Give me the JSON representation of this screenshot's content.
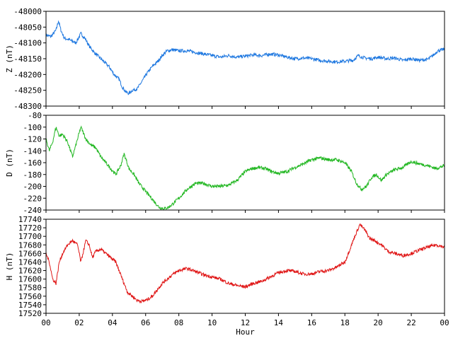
{
  "chart_data": [
    {
      "type": "line",
      "ylabel": "Z (nT)",
      "ylim": [
        -48300,
        -48000
      ],
      "yticks": [
        -48000,
        -48050,
        -48100,
        -48150,
        -48200,
        -48250,
        -48300
      ],
      "xlim": [
        0,
        24
      ],
      "series": [
        {
          "color": "#1f78e0",
          "x": [
            0,
            0.3,
            0.6,
            0.75,
            0.9,
            1.1,
            1.4,
            1.8,
            2.1,
            2.4,
            2.6,
            2.9,
            3.2,
            3.5,
            3.8,
            4.1,
            4.4,
            4.6,
            4.8,
            5.0,
            5.2,
            5.5,
            5.8,
            6.1,
            6.4,
            6.7,
            7.0,
            7.3,
            7.6,
            8.0,
            8.5,
            9.0,
            9.5,
            10.0,
            10.5,
            11.0,
            11.5,
            12.0,
            12.5,
            13.0,
            13.5,
            14.0,
            14.5,
            15.0,
            15.5,
            16.0,
            16.5,
            17.0,
            17.5,
            18.0,
            18.5,
            18.8,
            19.2,
            19.6,
            20.0,
            20.5,
            21.0,
            21.5,
            22.0,
            22.5,
            23.0,
            23.3,
            23.6,
            24.0
          ],
          "y": [
            -48075,
            -48080,
            -48060,
            -48030,
            -48060,
            -48085,
            -48090,
            -48100,
            -48070,
            -48090,
            -48110,
            -48130,
            -48145,
            -48160,
            -48175,
            -48200,
            -48215,
            -48240,
            -48255,
            -48260,
            -48250,
            -48245,
            -48220,
            -48195,
            -48175,
            -48160,
            -48140,
            -48125,
            -48122,
            -48125,
            -48125,
            -48130,
            -48135,
            -48140,
            -48145,
            -48140,
            -48145,
            -48142,
            -48138,
            -48140,
            -48135,
            -48138,
            -48145,
            -48150,
            -48148,
            -48150,
            -48155,
            -48158,
            -48160,
            -48158,
            -48155,
            -48140,
            -48148,
            -48150,
            -48145,
            -48150,
            -48148,
            -48155,
            -48150,
            -48155,
            -48152,
            -48140,
            -48125,
            -48120
          ]
        }
      ]
    },
    {
      "type": "line",
      "ylabel": "D (nT)",
      "ylim": [
        -240,
        -80
      ],
      "yticks": [
        -80,
        -100,
        -120,
        -140,
        -160,
        -180,
        -200,
        -220,
        -240
      ],
      "xlim": [
        0,
        24
      ],
      "series": [
        {
          "color": "#22b722",
          "x": [
            0,
            0.2,
            0.4,
            0.6,
            0.8,
            1.0,
            1.3,
            1.6,
            1.9,
            2.1,
            2.4,
            2.7,
            3.0,
            3.3,
            3.6,
            3.9,
            4.2,
            4.5,
            4.7,
            5.0,
            5.3,
            5.6,
            5.9,
            6.2,
            6.5,
            6.8,
            7.1,
            7.4,
            7.7,
            8.0,
            8.5,
            9.0,
            9.5,
            10.0,
            10.5,
            11.0,
            11.5,
            12.0,
            12.4,
            12.8,
            13.2,
            13.6,
            14.0,
            14.5,
            15.0,
            15.5,
            16.0,
            16.5,
            17.0,
            17.5,
            18.0,
            18.4,
            18.7,
            19.0,
            19.3,
            19.6,
            19.9,
            20.2,
            20.5,
            21.0,
            21.5,
            22.0,
            22.5,
            23.0,
            23.5,
            24.0
          ],
          "y": [
            -120,
            -140,
            -125,
            -100,
            -115,
            -112,
            -125,
            -150,
            -120,
            -100,
            -120,
            -130,
            -135,
            -150,
            -160,
            -170,
            -180,
            -165,
            -145,
            -170,
            -180,
            -195,
            -205,
            -215,
            -225,
            -235,
            -238,
            -235,
            -228,
            -220,
            -205,
            -195,
            -195,
            -200,
            -200,
            -198,
            -190,
            -175,
            -170,
            -168,
            -170,
            -175,
            -178,
            -175,
            -168,
            -162,
            -155,
            -152,
            -155,
            -155,
            -160,
            -175,
            -195,
            -205,
            -200,
            -185,
            -180,
            -190,
            -180,
            -172,
            -168,
            -158,
            -162,
            -165,
            -170,
            -165
          ]
        }
      ]
    },
    {
      "type": "line",
      "ylabel": "H (nT)",
      "ylim": [
        17520,
        17740
      ],
      "yticks": [
        17740,
        17720,
        17700,
        17680,
        17660,
        17640,
        17620,
        17600,
        17580,
        17560,
        17540,
        17520
      ],
      "xlim": [
        0,
        24
      ],
      "xlabel": "Hour",
      "xticks": [
        "00",
        "02",
        "04",
        "06",
        "08",
        "10",
        "12",
        "14",
        "16",
        "18",
        "20",
        "22",
        "00"
      ],
      "series": [
        {
          "color": "#e01818",
          "x": [
            0,
            0.2,
            0.4,
            0.6,
            0.8,
            1.0,
            1.3,
            1.6,
            1.9,
            2.1,
            2.4,
            2.6,
            2.8,
            3.0,
            3.3,
            3.6,
            3.9,
            4.2,
            4.5,
            4.7,
            4.9,
            5.2,
            5.5,
            5.8,
            6.1,
            6.4,
            6.7,
            7.0,
            7.3,
            7.6,
            8.0,
            8.5,
            9.0,
            9.5,
            10.0,
            10.5,
            11.0,
            11.5,
            12.0,
            12.5,
            13.0,
            13.5,
            14.0,
            14.5,
            15.0,
            15.5,
            16.0,
            16.5,
            17.0,
            17.5,
            18.0,
            18.3,
            18.6,
            18.9,
            19.2,
            19.5,
            19.8,
            20.2,
            20.6,
            21.0,
            21.5,
            22.0,
            22.5,
            23.0,
            23.5,
            24.0
          ],
          "y": [
            17660,
            17640,
            17600,
            17590,
            17640,
            17660,
            17680,
            17690,
            17680,
            17640,
            17690,
            17680,
            17650,
            17665,
            17670,
            17660,
            17650,
            17640,
            17610,
            17590,
            17570,
            17560,
            17550,
            17548,
            17552,
            17560,
            17575,
            17590,
            17600,
            17610,
            17620,
            17625,
            17618,
            17610,
            17605,
            17600,
            17590,
            17585,
            17582,
            17590,
            17595,
            17605,
            17615,
            17620,
            17618,
            17612,
            17612,
            17618,
            17620,
            17628,
            17640,
            17670,
            17700,
            17728,
            17715,
            17695,
            17690,
            17680,
            17665,
            17660,
            17655,
            17660,
            17668,
            17675,
            17680,
            17675
          ]
        }
      ]
    }
  ]
}
